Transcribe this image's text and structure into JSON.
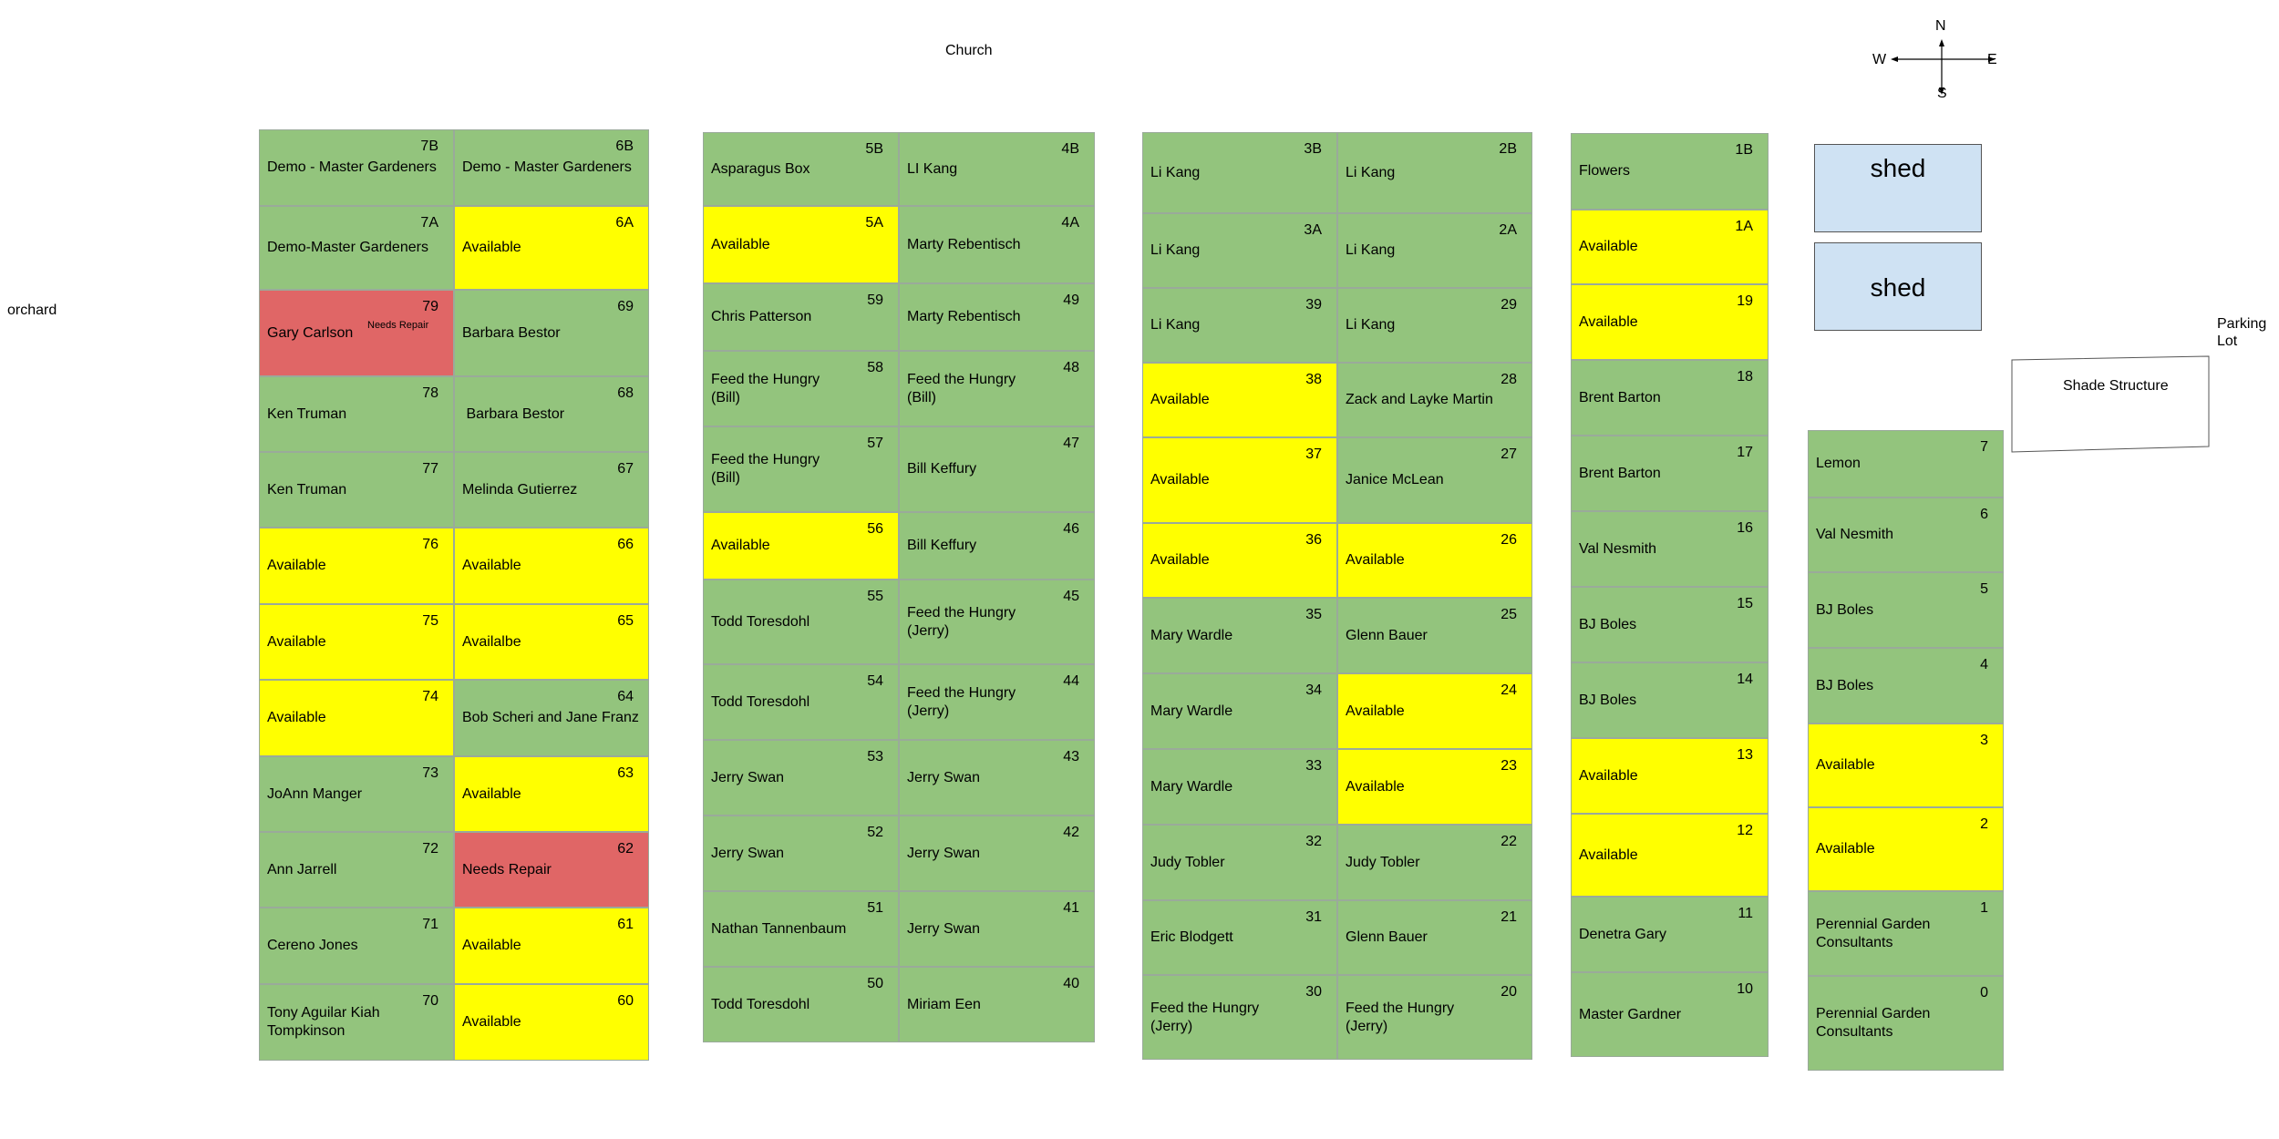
{
  "labels": {
    "church": "Church",
    "orchard": "orchard",
    "parking": "Parking\nLot",
    "shade": "Shade Structure",
    "shed1": "shed",
    "shed2": "shed"
  },
  "compass": {
    "n": "N",
    "s": "S",
    "e": "E",
    "w": "W"
  },
  "colors": {
    "green": "#93c47d",
    "yellow": "#ffff00",
    "red": "#e06666",
    "shed": "#cfe2f3"
  },
  "plots": [
    {
      "id": "7B",
      "name": "Demo - Master Gardeners",
      "status": "green"
    },
    {
      "id": "6B",
      "name": "Demo - Master Gardeners",
      "status": "green"
    },
    {
      "id": "7A",
      "name": "Demo-Master Gardeners",
      "status": "green"
    },
    {
      "id": "6A",
      "name": "Available",
      "status": "yellow"
    },
    {
      "id": "79",
      "name": "Gary Carlson",
      "note": "Needs Repair",
      "status": "red"
    },
    {
      "id": "69",
      "name": "Barbara Bestor",
      "status": "green"
    },
    {
      "id": "78",
      "name": "Ken Truman",
      "status": "green"
    },
    {
      "id": "68",
      "name": " Barbara Bestor",
      "status": "green"
    },
    {
      "id": "77",
      "name": "Ken Truman",
      "status": "green"
    },
    {
      "id": "67",
      "name": "Melinda Gutierrez",
      "status": "green"
    },
    {
      "id": "76",
      "name": "Available",
      "status": "yellow"
    },
    {
      "id": "66",
      "name": "Available",
      "status": "yellow"
    },
    {
      "id": "75",
      "name": "Available",
      "status": "yellow"
    },
    {
      "id": "65",
      "name": "Availalbe",
      "status": "yellow"
    },
    {
      "id": "74",
      "name": "Available",
      "status": "yellow"
    },
    {
      "id": "64",
      "name": "Bob Scheri and Jane Franz",
      "status": "green"
    },
    {
      "id": "73",
      "name": "JoAnn Manger",
      "status": "green"
    },
    {
      "id": "63",
      "name": "Available",
      "status": "yellow"
    },
    {
      "id": "72",
      "name": "Ann Jarrell",
      "status": "green"
    },
    {
      "id": "62",
      "name": "Needs Repair",
      "status": "red"
    },
    {
      "id": "71",
      "name": "Cereno Jones",
      "status": "green"
    },
    {
      "id": "61",
      "name": "Available",
      "status": "yellow"
    },
    {
      "id": "70",
      "name": "Tony Aguilar Kiah\nTompkinson",
      "status": "green"
    },
    {
      "id": "60",
      "name": "Available",
      "status": "yellow"
    },
    {
      "id": "5B",
      "name": "Asparagus Box",
      "status": "green"
    },
    {
      "id": "4B",
      "name": "LI Kang",
      "status": "green"
    },
    {
      "id": "5A",
      "name": "Available",
      "status": "yellow"
    },
    {
      "id": "4A",
      "name": "Marty Rebentisch",
      "status": "green"
    },
    {
      "id": "59",
      "name": "Chris Patterson",
      "status": "green"
    },
    {
      "id": "49",
      "name": "Marty Rebentisch",
      "status": "green"
    },
    {
      "id": "58",
      "name": "Feed the Hungry\n(Bill)",
      "status": "green"
    },
    {
      "id": "48",
      "name": "Feed the Hungry\n(Bill)",
      "status": "green"
    },
    {
      "id": "57",
      "name": "Feed the Hungry\n(Bill)",
      "status": "green"
    },
    {
      "id": "47",
      "name": "Bill Keffury",
      "status": "green"
    },
    {
      "id": "56",
      "name": "Available",
      "status": "yellow"
    },
    {
      "id": "46",
      "name": "Bill Keffury",
      "status": "green"
    },
    {
      "id": "55",
      "name": "Todd Toresdohl",
      "status": "green"
    },
    {
      "id": "45",
      "name": "Feed the Hungry\n(Jerry)",
      "status": "green"
    },
    {
      "id": "54",
      "name": "Todd Toresdohl",
      "status": "green"
    },
    {
      "id": "44",
      "name": "Feed the Hungry\n(Jerry)",
      "status": "green"
    },
    {
      "id": "53",
      "name": "Jerry Swan",
      "status": "green"
    },
    {
      "id": "43",
      "name": "Jerry Swan",
      "status": "green"
    },
    {
      "id": "52",
      "name": "Jerry Swan",
      "status": "green"
    },
    {
      "id": "42",
      "name": "Jerry Swan",
      "status": "green"
    },
    {
      "id": "51",
      "name": "Nathan Tannenbaum",
      "status": "green"
    },
    {
      "id": "41",
      "name": "Jerry Swan",
      "status": "green"
    },
    {
      "id": "50",
      "name": "Todd Toresdohl",
      "status": "green"
    },
    {
      "id": "40",
      "name": "Miriam Een",
      "status": "green"
    },
    {
      "id": "3B",
      "name": "Li Kang",
      "status": "green"
    },
    {
      "id": "2B",
      "name": "Li Kang",
      "status": "green"
    },
    {
      "id": "3A",
      "name": "Li Kang",
      "status": "green"
    },
    {
      "id": "2A",
      "name": "Li Kang",
      "status": "green"
    },
    {
      "id": "39",
      "name": "Li Kang",
      "status": "green"
    },
    {
      "id": "29",
      "name": "Li Kang",
      "status": "green"
    },
    {
      "id": "38",
      "name": "Available",
      "status": "yellow"
    },
    {
      "id": "28",
      "name": "Zack and Layke Martin",
      "status": "green"
    },
    {
      "id": "37",
      "name": "Available",
      "status": "yellow"
    },
    {
      "id": "27",
      "name": "Janice McLean",
      "status": "green"
    },
    {
      "id": "36",
      "name": "Available",
      "status": "yellow"
    },
    {
      "id": "26",
      "name": "Available",
      "status": "yellow"
    },
    {
      "id": "35",
      "name": "Mary Wardle",
      "status": "green"
    },
    {
      "id": "25",
      "name": "Glenn Bauer",
      "status": "green"
    },
    {
      "id": "34",
      "name": "Mary Wardle",
      "status": "green"
    },
    {
      "id": "24",
      "name": "Available",
      "status": "yellow"
    },
    {
      "id": "33",
      "name": "Mary Wardle",
      "status": "green"
    },
    {
      "id": "23",
      "name": "Available",
      "status": "yellow"
    },
    {
      "id": "32",
      "name": "Judy Tobler",
      "status": "green"
    },
    {
      "id": "22",
      "name": "Judy Tobler",
      "status": "green"
    },
    {
      "id": "31",
      "name": "Eric Blodgett",
      "status": "green"
    },
    {
      "id": "21",
      "name": "Glenn Bauer",
      "status": "green"
    },
    {
      "id": "30",
      "name": "Feed the Hungry\n(Jerry)",
      "status": "green"
    },
    {
      "id": "20",
      "name": "Feed the Hungry\n(Jerry)",
      "status": "green"
    },
    {
      "id": "1B",
      "name": "Flowers",
      "status": "green"
    },
    {
      "id": "1A",
      "name": "Available",
      "status": "yellow"
    },
    {
      "id": "19",
      "name": "Available",
      "status": "yellow"
    },
    {
      "id": "18",
      "name": "Brent Barton",
      "status": "green"
    },
    {
      "id": "17",
      "name": "Brent Barton",
      "status": "green"
    },
    {
      "id": "16",
      "name": "Val Nesmith",
      "status": "green"
    },
    {
      "id": "15",
      "name": "BJ Boles",
      "status": "green"
    },
    {
      "id": "14",
      "name": "BJ Boles",
      "status": "green"
    },
    {
      "id": "13",
      "name": "Available",
      "status": "yellow"
    },
    {
      "id": "12",
      "name": "Available",
      "status": "yellow"
    },
    {
      "id": "11",
      "name": "Denetra Gary",
      "status": "green"
    },
    {
      "id": "10",
      "name": "Master Gardner",
      "status": "green"
    },
    {
      "id": "7",
      "name": "Lemon",
      "status": "green"
    },
    {
      "id": "6",
      "name": "Val Nesmith",
      "status": "green"
    },
    {
      "id": "5",
      "name": "BJ Boles",
      "status": "green"
    },
    {
      "id": "4",
      "name": "BJ Boles",
      "status": "green"
    },
    {
      "id": "3",
      "name": "Available",
      "status": "yellow"
    },
    {
      "id": "2",
      "name": "Available",
      "status": "yellow"
    },
    {
      "id": "1",
      "name": "Perennial Garden\nConsultants",
      "status": "green"
    },
    {
      "id": "0",
      "name": "Perennial Garden\nConsultants",
      "status": "green"
    }
  ]
}
